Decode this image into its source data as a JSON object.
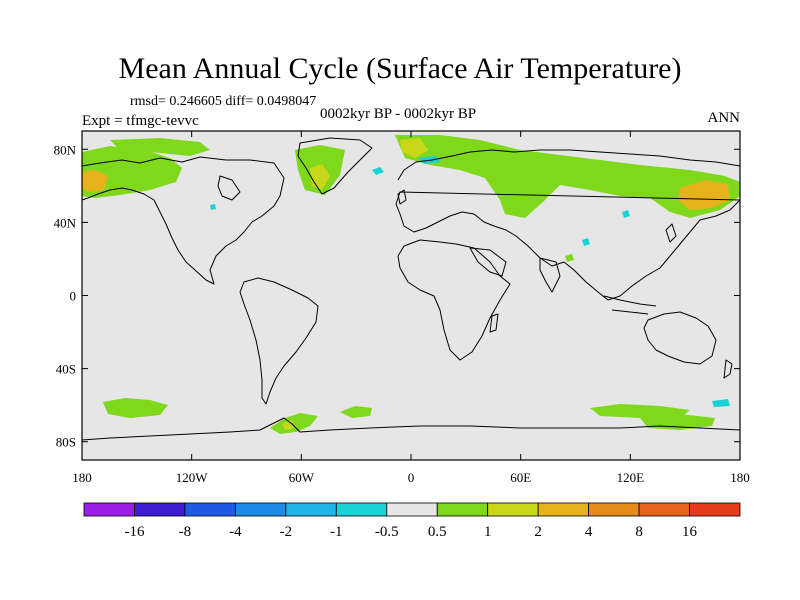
{
  "header": {
    "title": "Mean Annual Cycle (Surface Air Temperature)",
    "stats": "rmsd= 0.246605 diff= 0.0498047",
    "experiment": "Expt = tfmgc-tevvc",
    "period": "0002kyr BP - 0002kyr BP",
    "season": "ANN"
  },
  "map": {
    "lat_ticks": [
      "80N",
      "40N",
      "0",
      "40S",
      "80S"
    ],
    "lon_ticks": [
      "180",
      "120W",
      "60W",
      "0",
      "60E",
      "120E",
      "180"
    ],
    "colors": {
      "background": "#e6e6e6",
      "land_outline": "#000000",
      "positive_small": "#7fd81c",
      "positive_mid": "#c9d719",
      "positive_high": "#e6b21b",
      "negative_small": "#1ad2d6"
    }
  },
  "colorbar": {
    "colors": [
      "#9b1ee6",
      "#3d1ed2",
      "#1e5ae6",
      "#1e8ce6",
      "#1eb4e6",
      "#1ad2d6",
      "#e6e6e6",
      "#7fd81c",
      "#c9d719",
      "#e6b21b",
      "#e68c1b",
      "#e6641b",
      "#e63c1b"
    ],
    "labels": [
      "-16",
      "-8",
      "-4",
      "-2",
      "-1",
      "-0.5",
      "0.5",
      "1",
      "2",
      "4",
      "8",
      "16"
    ]
  }
}
